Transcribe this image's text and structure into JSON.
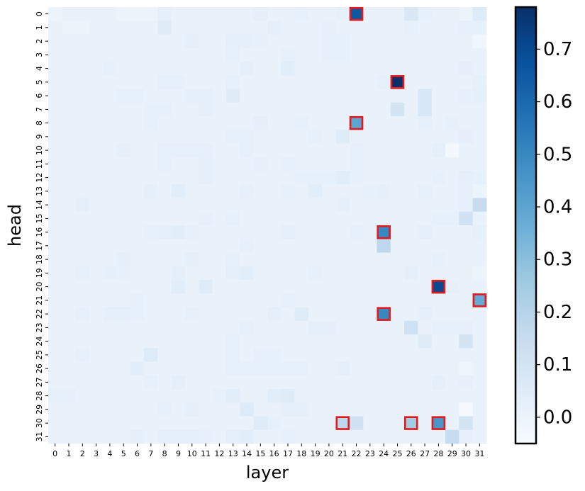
{
  "chart_data": {
    "type": "heatmap",
    "xlabel": "layer",
    "ylabel": "head",
    "x": [
      0,
      1,
      2,
      3,
      4,
      5,
      6,
      7,
      8,
      9,
      10,
      11,
      12,
      13,
      14,
      15,
      16,
      17,
      18,
      19,
      20,
      21,
      22,
      23,
      24,
      25,
      26,
      27,
      28,
      29,
      30,
      31
    ],
    "y": [
      0,
      1,
      2,
      3,
      4,
      5,
      6,
      7,
      8,
      9,
      10,
      11,
      12,
      13,
      14,
      15,
      16,
      17,
      18,
      19,
      20,
      21,
      22,
      23,
      24,
      25,
      26,
      27,
      28,
      29,
      30,
      31
    ],
    "values": [
      [
        0,
        0.01,
        0.01,
        0.01,
        0.01,
        0,
        0,
        0,
        0.03,
        0.01,
        0.01,
        0.01,
        0.01,
        0.01,
        0.01,
        0.03,
        0.01,
        0.01,
        0.02,
        0.01,
        0.01,
        0.02,
        0.65,
        0.01,
        0.01,
        0.01,
        0.07,
        0.02,
        0.01,
        0.01,
        0,
        0.06
      ],
      [
        0.01,
        0,
        0,
        0.01,
        0.01,
        0.01,
        0.01,
        0.01,
        0.05,
        0.01,
        0.01,
        0.01,
        0.01,
        0.01,
        0.01,
        0.01,
        0.03,
        0.01,
        0.01,
        0.01,
        0.02,
        0.01,
        0.01,
        0.01,
        0.01,
        0.01,
        0.02,
        0.01,
        0.01,
        0.01,
        0.02,
        0.02
      ],
      [
        0.01,
        0.01,
        0.01,
        0.01,
        0.01,
        0.01,
        0.01,
        0.01,
        0.01,
        0.01,
        0.03,
        0.01,
        0.01,
        0.03,
        0.03,
        0.02,
        0.01,
        0.01,
        0.01,
        0.01,
        0.02,
        0.02,
        0.01,
        0.01,
        0.01,
        0.01,
        0.01,
        0.01,
        0.01,
        0.01,
        0.01,
        -0.02
      ],
      [
        0.01,
        0.01,
        0.01,
        0.01,
        0.01,
        0.01,
        0.01,
        0.01,
        0.01,
        0.01,
        0.01,
        0.01,
        0.01,
        0.02,
        0.01,
        0.01,
        0.01,
        0.02,
        0.01,
        0.01,
        0.02,
        0.02,
        0.01,
        0.01,
        0.01,
        0.01,
        0.01,
        0.01,
        0.01,
        0.01,
        0.01,
        0.01
      ],
      [
        0.01,
        0.01,
        0.01,
        0.01,
        0.02,
        0.01,
        0.01,
        0.01,
        0.01,
        0.01,
        0.01,
        0.01,
        0.01,
        0.01,
        0.03,
        0.01,
        0.01,
        0.04,
        0.01,
        0.01,
        0.01,
        0.01,
        0.01,
        0.01,
        0.01,
        0.01,
        0.01,
        0.01,
        0.01,
        0.01,
        0.03,
        0.01
      ],
      [
        0.01,
        0.01,
        0.01,
        0.01,
        0.01,
        0.01,
        0.01,
        0.01,
        0.02,
        0.02,
        0.01,
        0.01,
        0.01,
        0.02,
        0.01,
        0.01,
        0.01,
        0.01,
        0.01,
        0.01,
        0.01,
        0.01,
        0.01,
        0.01,
        0.02,
        0.78,
        0.01,
        0.01,
        0.01,
        0.01,
        0.01,
        0.02
      ],
      [
        0.01,
        0.01,
        0.01,
        0.01,
        0.01,
        0.02,
        0.02,
        0.01,
        0.01,
        0.01,
        0.03,
        0.03,
        0.01,
        0.05,
        0.01,
        0.01,
        0.01,
        0.01,
        0.01,
        0.01,
        0.01,
        0.01,
        0.01,
        0.01,
        0.01,
        0.01,
        0.01,
        0.08,
        0.01,
        0.01,
        0.02,
        0.03
      ],
      [
        0.01,
        0.01,
        0.01,
        0.01,
        0.01,
        0.01,
        0.01,
        0.02,
        0.02,
        0.01,
        0.01,
        0.03,
        0.01,
        0.01,
        0.01,
        0.01,
        0.01,
        0.01,
        0.01,
        0.01,
        0.01,
        0.01,
        0.01,
        0.01,
        0.01,
        0.1,
        0.01,
        0.08,
        0.01,
        0.01,
        0.01,
        0.01
      ],
      [
        0.01,
        0.01,
        0.01,
        0.01,
        0.01,
        0.01,
        0.01,
        0.02,
        0.01,
        0.01,
        0.01,
        0.01,
        0.01,
        0.01,
        0.01,
        0.03,
        0.01,
        0.01,
        0.02,
        0.01,
        0.01,
        0.01,
        0.4,
        0.01,
        0.01,
        0.01,
        0.01,
        0.02,
        0.01,
        0.02,
        0.01,
        0.01
      ],
      [
        0.01,
        0.01,
        0.01,
        0.01,
        0.01,
        0.01,
        0.01,
        0.01,
        0.01,
        0.01,
        0.01,
        0.01,
        0.01,
        0.02,
        0.02,
        0.01,
        0.01,
        0.01,
        0.01,
        0.02,
        0.01,
        0.05,
        0.01,
        0.01,
        0.01,
        0.01,
        0.01,
        0.01,
        0.01,
        0.01,
        0.03,
        0.01
      ],
      [
        0.01,
        0.01,
        0.01,
        0.01,
        0.01,
        0.03,
        0.01,
        0.01,
        0.02,
        0.02,
        0.02,
        0.02,
        0.01,
        0.01,
        0.02,
        0.01,
        0.01,
        0.01,
        0.01,
        0.01,
        0.01,
        0.01,
        0.02,
        0.01,
        0.01,
        0.01,
        0.01,
        0.01,
        0.03,
        -0.03,
        0.01,
        0.01
      ],
      [
        0.01,
        0.01,
        0.01,
        0.01,
        0.01,
        0.01,
        0.01,
        0.01,
        0.02,
        0.01,
        0.01,
        0.03,
        0.01,
        0.01,
        0.01,
        0.02,
        0.01,
        0.02,
        0.01,
        0.01,
        0.01,
        0.01,
        0.02,
        0.01,
        0.01,
        0.01,
        0.01,
        0.01,
        0.01,
        0.01,
        0.01,
        0.01
      ],
      [
        0.01,
        0.01,
        0.01,
        0.01,
        0.01,
        0.01,
        0.01,
        0.01,
        0.01,
        0.01,
        0.01,
        0.03,
        0.01,
        0.01,
        0.01,
        0.01,
        0.01,
        0.01,
        0.02,
        0.02,
        0.02,
        0.04,
        0.02,
        0.01,
        0.01,
        0.01,
        0.01,
        0.01,
        0.02,
        0.01,
        0.03,
        0.02
      ],
      [
        0.01,
        0.01,
        0.01,
        0.01,
        0.01,
        0.01,
        0.01,
        0.03,
        0.01,
        0.04,
        0.01,
        0.01,
        0.01,
        0.01,
        0.02,
        0.01,
        0.01,
        0.02,
        0.01,
        0.04,
        0.01,
        0.01,
        0.01,
        0.02,
        0.03,
        0.01,
        0.01,
        0.02,
        0.01,
        0.01,
        0.02,
        0
      ],
      [
        0.01,
        0.01,
        0.03,
        0.01,
        0.01,
        0.01,
        0.01,
        0.01,
        0.01,
        0.01,
        0.01,
        0.01,
        0.01,
        0.01,
        0.01,
        0.01,
        0.01,
        0.01,
        0.01,
        0.01,
        0.01,
        0.03,
        0.01,
        0.01,
        0.01,
        0.01,
        0.01,
        0.01,
        0.01,
        0.01,
        0.02,
        0.15
      ],
      [
        0.01,
        0.01,
        0.01,
        0.01,
        0.01,
        0.01,
        0.01,
        0.01,
        0.01,
        0.01,
        0.01,
        0.02,
        0.01,
        0.02,
        0.01,
        0.01,
        0.01,
        0.01,
        0.01,
        0.01,
        0.01,
        0.01,
        0.01,
        0.01,
        0.01,
        0.01,
        0.01,
        0.01,
        0.02,
        0.02,
        0.12,
        0.01
      ],
      [
        0.01,
        0.01,
        0.01,
        0.01,
        0.01,
        0.01,
        0.01,
        0.02,
        0.03,
        0.04,
        0.02,
        0.01,
        0.01,
        0.01,
        0.01,
        0.01,
        0.01,
        0.03,
        0.01,
        0.01,
        0.01,
        0.01,
        0.02,
        0.01,
        0.5,
        0.01,
        0.01,
        0.03,
        0.01,
        0.01,
        0.01,
        0.02
      ],
      [
        0.01,
        0.01,
        0.01,
        0.01,
        0.01,
        0.01,
        0.01,
        0.01,
        0.01,
        0.01,
        0.01,
        0.01,
        0.01,
        0.01,
        0.02,
        0.01,
        0.01,
        0.01,
        0.01,
        0.01,
        0.01,
        0.01,
        0.01,
        0.01,
        0.18,
        0.01,
        0.01,
        0.01,
        0.01,
        0.01,
        0.01,
        0.01
      ],
      [
        0.01,
        0.01,
        0.01,
        0.01,
        0.01,
        0.03,
        0.01,
        0.01,
        0.01,
        0.01,
        0.03,
        0.01,
        0.01,
        0.02,
        0.01,
        0.01,
        0.01,
        0.01,
        0.01,
        0.01,
        0.01,
        0.01,
        0.01,
        0.01,
        0.01,
        0.01,
        0.01,
        0.01,
        0.02,
        0.01,
        0.01,
        0.01
      ],
      [
        0.01,
        0.01,
        0.02,
        0.01,
        0.03,
        0.02,
        0.01,
        0.01,
        0.01,
        0.03,
        0.01,
        0.01,
        0.01,
        0.03,
        0.04,
        0.01,
        0.01,
        0.01,
        0.01,
        0.02,
        0.01,
        0.01,
        0.01,
        0.01,
        0.01,
        0.01,
        0.03,
        0.01,
        0.01,
        0.01,
        0.01,
        0
      ],
      [
        0.01,
        0.01,
        0.01,
        0.01,
        0.01,
        0.01,
        0.01,
        0.01,
        0.01,
        0.04,
        0.01,
        0.05,
        0.01,
        0.01,
        0.01,
        0.01,
        0.01,
        0.01,
        0.01,
        0.01,
        0.01,
        0.01,
        0.01,
        0.01,
        0.01,
        0.01,
        0.01,
        0.01,
        0.7,
        0.02,
        0.01,
        0.01
      ],
      [
        0.01,
        0.01,
        0.01,
        0.01,
        0.01,
        0.01,
        0.02,
        0.01,
        0.01,
        0.01,
        0.01,
        0.01,
        0.01,
        0.01,
        0.01,
        0.01,
        0.01,
        0.02,
        0.01,
        0.01,
        0.01,
        0.01,
        0.01,
        0.01,
        0.01,
        0.01,
        0.01,
        0.01,
        0.01,
        0.01,
        0.01,
        0.38
      ],
      [
        0.01,
        0.01,
        0.02,
        0.01,
        0.03,
        0.03,
        0.02,
        0.01,
        0.01,
        0.01,
        0.02,
        0.01,
        0.01,
        0.01,
        0.01,
        0.01,
        0.03,
        0.01,
        0.05,
        0.01,
        0.01,
        0.01,
        0.01,
        0.01,
        0.5,
        0.01,
        0.01,
        0.03,
        0.01,
        0.01,
        0.01,
        0.01
      ],
      [
        0.01,
        0.01,
        0.01,
        0.01,
        0.01,
        0.01,
        0.01,
        0.01,
        0.01,
        0.01,
        0.01,
        0.01,
        0.01,
        0.01,
        0.02,
        0.01,
        0.01,
        0.01,
        0.01,
        0.03,
        0.03,
        0.01,
        0.01,
        0.01,
        0.01,
        0.01,
        0.12,
        0.01,
        0.02,
        0.02,
        0.02,
        0.01
      ],
      [
        0.01,
        0.01,
        0.01,
        0.01,
        0.01,
        0.01,
        0.01,
        0.01,
        0.01,
        0.01,
        0.01,
        0.01,
        0.01,
        0.02,
        0.01,
        0.01,
        0.01,
        0.01,
        0.01,
        0.01,
        0.01,
        0.01,
        0.01,
        0.01,
        0.01,
        0.01,
        0.01,
        0.05,
        0.01,
        0.01,
        0.1,
        0.01
      ],
      [
        0.01,
        0.01,
        0.02,
        0.01,
        0.01,
        0.01,
        0.01,
        0.06,
        0.01,
        0.01,
        0.01,
        0.01,
        0.01,
        0.02,
        0.01,
        0.02,
        0.02,
        0.01,
        0.01,
        0.01,
        0.01,
        0.01,
        0.01,
        0.01,
        0.01,
        0.01,
        0.01,
        0.01,
        0.01,
        0.01,
        0.01,
        0.01
      ],
      [
        0.01,
        0.01,
        0.01,
        0.01,
        0.01,
        0.01,
        0.04,
        0.01,
        0.01,
        0.01,
        0.01,
        0.01,
        0.01,
        0.02,
        0.02,
        0.02,
        0.02,
        0.02,
        0.02,
        0.01,
        0.01,
        0.03,
        0.01,
        0.01,
        0.01,
        0.01,
        0.01,
        0.01,
        0.01,
        0.01,
        -0.01,
        0.01
      ],
      [
        0.01,
        0.01,
        0.01,
        0.01,
        0.01,
        0.01,
        0.01,
        0.02,
        0.01,
        0.03,
        0.01,
        0.01,
        0.01,
        0.01,
        0.01,
        0.01,
        0.01,
        0.01,
        0.01,
        0.01,
        0.01,
        0.01,
        0.01,
        0.01,
        0.01,
        0.01,
        0.01,
        0.01,
        0.03,
        0.01,
        0.02,
        0.01
      ],
      [
        0.02,
        0.02,
        0.01,
        0.01,
        0.01,
        0.01,
        0.01,
        0.01,
        0.01,
        0.01,
        0.01,
        0.01,
        0.02,
        0.04,
        0.01,
        0.01,
        0.04,
        0.05,
        0.01,
        0.01,
        0.01,
        0.01,
        0.01,
        0.01,
        0.01,
        0.01,
        0.01,
        0.01,
        0.01,
        0.01,
        0.01,
        0.01
      ],
      [
        0.01,
        0.01,
        0.01,
        0.01,
        0.01,
        0.01,
        0.01,
        0.01,
        0.02,
        0.01,
        0.03,
        0.01,
        0.01,
        0.01,
        0.06,
        0.01,
        0.01,
        0.03,
        0.03,
        0.01,
        0.01,
        0.01,
        0.01,
        0.01,
        0.01,
        0.01,
        0.01,
        0.01,
        0.01,
        0.01,
        -0.04,
        0.01
      ],
      [
        0.01,
        0.01,
        0.01,
        0.01,
        0.01,
        0.01,
        0.01,
        0.01,
        0.01,
        0.01,
        0.01,
        0.01,
        0.01,
        0.01,
        0.01,
        0.05,
        0.02,
        0.01,
        0.01,
        0.01,
        0.01,
        0.18,
        0.12,
        0.01,
        0.01,
        0.01,
        0.25,
        0.01,
        0.45,
        0.01,
        0.1,
        0.01
      ],
      [
        0.01,
        0.01,
        0.01,
        0.01,
        0.01,
        0.01,
        0.03,
        0.01,
        0.03,
        0.03,
        0.03,
        0.02,
        0.01,
        0.03,
        0.04,
        0.01,
        0.01,
        0.02,
        0.01,
        0.01,
        0.01,
        0.01,
        0.01,
        0.01,
        0.01,
        0.01,
        0.01,
        0.01,
        0.01,
        0.15,
        0.02,
        0.01
      ]
    ],
    "zlim": [
      -0.05,
      0.78
    ],
    "colorbar_ticks": [
      {
        "value": 0,
        "label": "0.0"
      },
      0.1,
      0.2,
      0.3,
      0.4,
      0.5,
      0.6,
      0.7
    ],
    "colormap": [
      "#f7fbff",
      "#deebf7",
      "#c6dbef",
      "#9ecae1",
      "#6baed6",
      "#4292c6",
      "#2171b5",
      "#08519c",
      "#08306b"
    ],
    "highlight_color": "#e31a1c",
    "highlights": [
      [
        0,
        22
      ],
      [
        5,
        25
      ],
      [
        8,
        22
      ],
      [
        16,
        24
      ],
      [
        20,
        28
      ],
      [
        21,
        31
      ],
      [
        22,
        24
      ],
      [
        30,
        21
      ],
      [
        30,
        26
      ],
      [
        30,
        28
      ]
    ]
  }
}
